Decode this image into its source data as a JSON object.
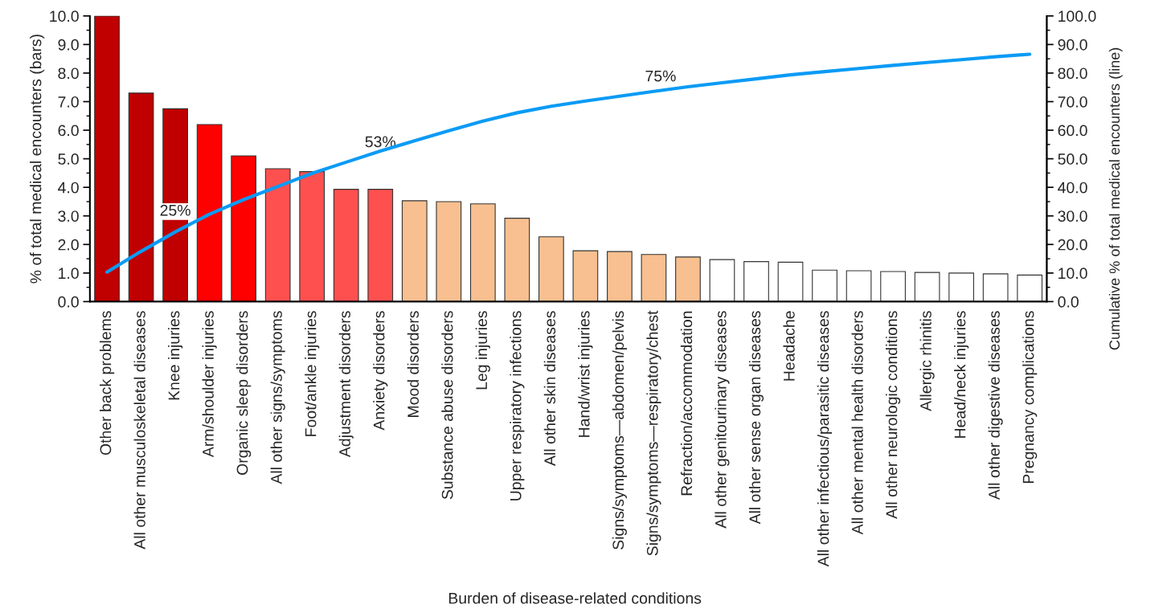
{
  "chart_data": {
    "type": "bar",
    "xlabel": "Burden of disease-related conditions",
    "ylabel": "% of total medical encounters (bars)",
    "y2label": "Cumulative % of total medical encounters (line)",
    "categories": [
      "Other back problems",
      "All other musculoskeletal diseases",
      "Knee injuries",
      "Arm/shoulder injuries",
      "Organic sleep disorders",
      "All other signs/symptoms",
      "Foot/ankle injuries",
      "Adjustment disorders",
      "Anxiety disorders",
      "Mood disorders",
      "Substance abuse disorders",
      "Leg injuries",
      "Upper respiratory infections",
      "All other skin diseases",
      "Hand/wrist injuries",
      "Signs/symptoms—abdomen/pelvis",
      "Signs/symptoms—respiratory/chest",
      "Refraction/accommodation",
      "All other genitourinary diseases",
      "All other sense organ diseases",
      "Headache",
      "All other infectious/parasitic diseases",
      "All other mental health disorders",
      "All other neurologic conditions",
      "Allergic rhinitis",
      "Head/neck injuries",
      "All other digestive diseases",
      "Pregnancy complications"
    ],
    "series": [
      {
        "values": [
          10.0,
          7.3,
          6.75,
          6.2,
          5.1,
          4.65,
          4.55,
          3.93,
          3.93,
          3.53,
          3.5,
          3.42,
          2.92,
          2.27,
          1.78,
          1.75,
          1.65,
          1.56,
          1.47,
          1.4,
          1.38,
          1.1,
          1.08,
          1.05,
          1.02,
          1.0,
          0.97,
          0.93
        ],
        "colors": [
          "#c00000",
          "#c00000",
          "#c00000",
          "#ff0000",
          "#ff0000",
          "#ff5050",
          "#ff5050",
          "#ff5050",
          "#ff5050",
          "#f8c090",
          "#f8c090",
          "#f8c090",
          "#f8c090",
          "#f8c090",
          "#f8c090",
          "#f8c090",
          "#f8c090",
          "#f8c090",
          "#ffffff",
          "#ffffff",
          "#ffffff",
          "#ffffff",
          "#ffffff",
          "#ffffff",
          "#ffffff",
          "#ffffff",
          "#ffffff",
          "#ffffff"
        ]
      },
      {
        "type": "line",
        "axis": "y2",
        "color": "#0b9bf5",
        "values": [
          10.3,
          17.6,
          24.4,
          30.6,
          35.7,
          40.3,
          44.9,
          48.8,
          52.7,
          56.3,
          59.8,
          63.2,
          66.1,
          68.4,
          70.2,
          71.9,
          73.6,
          75.2,
          76.6,
          78.0,
          79.4,
          80.5,
          81.6,
          82.7,
          83.7,
          84.7,
          85.7,
          86.6
        ]
      }
    ],
    "ylim": [
      0,
      10
    ],
    "yticks": [
      {
        "value": 0,
        "label": "0.0"
      },
      {
        "value": 1,
        "label": "1.0"
      },
      {
        "value": 2,
        "label": "2.0"
      },
      {
        "value": 3,
        "label": "3.0"
      },
      {
        "value": 4,
        "label": "4.0"
      },
      {
        "value": 5,
        "label": "5.0"
      },
      {
        "value": 6,
        "label": "6.0"
      },
      {
        "value": 7,
        "label": "7.0"
      },
      {
        "value": 8,
        "label": "8.0"
      },
      {
        "value": 9,
        "label": "9.0"
      },
      {
        "value": 10,
        "label": "10.0"
      }
    ],
    "y2lim": [
      0,
      100
    ],
    "y2ticks": [
      {
        "value": 0,
        "label": "0.0"
      },
      {
        "value": 10,
        "label": "10.0"
      },
      {
        "value": 20,
        "label": "20.0"
      },
      {
        "value": 30,
        "label": "30.0"
      },
      {
        "value": 40,
        "label": "40.0"
      },
      {
        "value": 50,
        "label": "50.0"
      },
      {
        "value": 60,
        "label": "60.0"
      },
      {
        "value": 70,
        "label": "70.0"
      },
      {
        "value": 80,
        "label": "80.0"
      },
      {
        "value": 90,
        "label": "90.0"
      },
      {
        "value": 100,
        "label": "100.0"
      }
    ],
    "annotations": [
      "25%",
      "53%",
      "75%"
    ],
    "grid": false
  }
}
